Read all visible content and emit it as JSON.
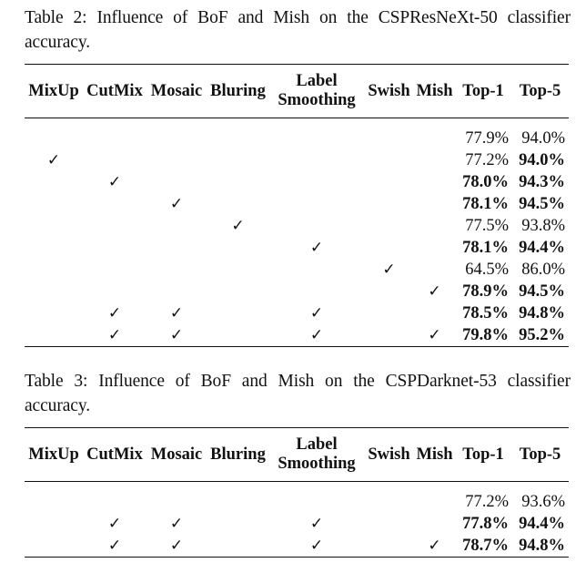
{
  "tables": [
    {
      "caption": "Table 2: Influence of BoF and Mish on the CSPResNeXt-50 classifier accuracy.",
      "headers": [
        "MixUp",
        "CutMix",
        "Mosaic",
        "Bluring",
        "Label Smoothing",
        "Swish",
        "Mish",
        "Top-1",
        "Top-5"
      ],
      "check_mark": "✓",
      "rows": [
        {
          "checks": [
            false,
            false,
            false,
            false,
            false,
            false,
            false
          ],
          "top1": "77.9%",
          "top1_bold": false,
          "top5": "94.0%",
          "top5_bold": false
        },
        {
          "checks": [
            true,
            false,
            false,
            false,
            false,
            false,
            false
          ],
          "top1": "77.2%",
          "top1_bold": false,
          "top5": "94.0%",
          "top5_bold": true
        },
        {
          "checks": [
            false,
            true,
            false,
            false,
            false,
            false,
            false
          ],
          "top1": "78.0%",
          "top1_bold": true,
          "top5": "94.3%",
          "top5_bold": true
        },
        {
          "checks": [
            false,
            false,
            true,
            false,
            false,
            false,
            false
          ],
          "top1": "78.1%",
          "top1_bold": true,
          "top5": "94.5%",
          "top5_bold": true
        },
        {
          "checks": [
            false,
            false,
            false,
            true,
            false,
            false,
            false
          ],
          "top1": "77.5%",
          "top1_bold": false,
          "top5": "93.8%",
          "top5_bold": false
        },
        {
          "checks": [
            false,
            false,
            false,
            false,
            true,
            false,
            false
          ],
          "top1": "78.1%",
          "top1_bold": true,
          "top5": "94.4%",
          "top5_bold": true
        },
        {
          "checks": [
            false,
            false,
            false,
            false,
            false,
            true,
            false
          ],
          "top1": "64.5%",
          "top1_bold": false,
          "top5": "86.0%",
          "top5_bold": false
        },
        {
          "checks": [
            false,
            false,
            false,
            false,
            false,
            false,
            true
          ],
          "top1": "78.9%",
          "top1_bold": true,
          "top5": "94.5%",
          "top5_bold": true
        },
        {
          "checks": [
            false,
            true,
            true,
            false,
            true,
            false,
            false
          ],
          "top1": "78.5%",
          "top1_bold": true,
          "top5": "94.8%",
          "top5_bold": true
        },
        {
          "checks": [
            false,
            true,
            true,
            false,
            true,
            false,
            true
          ],
          "top1": "79.8%",
          "top1_bold": true,
          "top5": "95.2%",
          "top5_bold": true
        }
      ]
    },
    {
      "caption": "Table 3: Influence of BoF and Mish on the CSPDarknet-53 classifier accuracy.",
      "headers": [
        "MixUp",
        "CutMix",
        "Mosaic",
        "Bluring",
        "Label Smoothing",
        "Swish",
        "Mish",
        "Top-1",
        "Top-5"
      ],
      "check_mark": "✓",
      "rows": [
        {
          "checks": [
            false,
            false,
            false,
            false,
            false,
            false,
            false
          ],
          "top1": "77.2%",
          "top1_bold": false,
          "top5": "93.6%",
          "top5_bold": false
        },
        {
          "checks": [
            false,
            true,
            true,
            false,
            true,
            false,
            false
          ],
          "top1": "77.8%",
          "top1_bold": true,
          "top5": "94.4%",
          "top5_bold": true
        },
        {
          "checks": [
            false,
            true,
            true,
            false,
            true,
            false,
            true
          ],
          "top1": "78.7%",
          "top1_bold": true,
          "top5": "94.8%",
          "top5_bold": true
        }
      ]
    }
  ]
}
